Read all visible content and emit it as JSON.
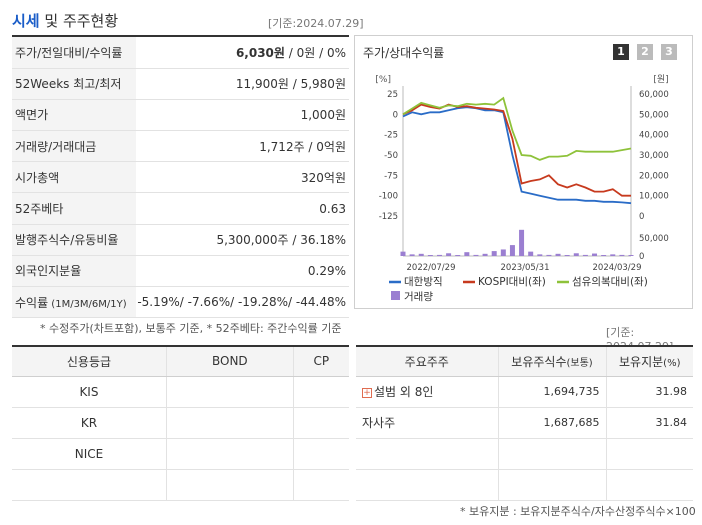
{
  "header": {
    "title_highlight": "시세",
    "title_rest": " 및 주주현황",
    "base_date": "[기준:2024.07.29]"
  },
  "quote_table": {
    "price_label": "주가/전일대비/수익률",
    "price_value": "6,030원",
    "price_rest": " / 0원 / 0%",
    "w52_label": "52Weeks 최고/최저",
    "w52_value": "11,900원 / 5,980원",
    "par_label": "액면가",
    "par_value": "1,000원",
    "volume_label": "거래량/거래대금",
    "volume_value": "1,712주 / 0억원",
    "mcap_label": "시가총액",
    "mcap_value": "320억원",
    "beta_label": "52주베타",
    "beta_value": "0.63",
    "shares_label": "발행주식수/유동비율",
    "shares_value": "5,300,000주 / 36.18%",
    "foreign_label": "외국인지분율",
    "foreign_value": "0.29%",
    "return_label": "수익률",
    "return_label_small": " (1M/3M/6M/1Y)",
    "return_value": "-5.19%/ -7.66%/ -19.28%/ -44.48%"
  },
  "note_left": "* 수정주가(차트포함), 보통주 기준, * 52주베타: 주간수익률 기준",
  "chart": {
    "title": "주가/상대수익률",
    "pages": [
      "1",
      "2",
      "3"
    ],
    "left_unit": "[%]",
    "right_unit": "[원]",
    "legend_stock": "대한방직",
    "legend_kospi": "KOSPI대비(좌)",
    "legend_sector": "섬유의복대비(좌)",
    "legend_volume": "거래량",
    "colors": {
      "stock": "#2a6cc7",
      "kospi": "#c73a1e",
      "sector": "#8ec23a",
      "volume": "#9b7fd1"
    }
  },
  "chart_data": {
    "type": "line",
    "x_ticks": [
      "2022/07/29",
      "2023/05/31",
      "2024/03/29"
    ],
    "y_left_ticks": [
      "25",
      "0",
      "-25",
      "-50",
      "-75",
      "-100",
      "-125"
    ],
    "y_right_ticks": [
      "60,000",
      "50,000",
      "40,000",
      "30,000",
      "20,000",
      "10,000",
      "0"
    ],
    "volume_ticks": [
      "50,000",
      "0"
    ],
    "ylim_left": [
      -125,
      25
    ],
    "ylim_right": [
      0,
      60000
    ],
    "series": [
      {
        "name": "대한방직",
        "axis": "right",
        "values": [
          49000,
          51000,
          50000,
          51000,
          51000,
          52000,
          53000,
          53500,
          53000,
          52000,
          52000,
          51000,
          30000,
          12000,
          11000,
          10000,
          9000,
          8000,
          8000,
          8000,
          7500,
          7500,
          7000,
          7000,
          6700,
          6300
        ]
      },
      {
        "name": "KOSPI대비(좌)",
        "axis": "left",
        "values": [
          0,
          5,
          12,
          9,
          7,
          12,
          9,
          10,
          8,
          7,
          6,
          4,
          -30,
          -85,
          -82,
          -80,
          -75,
          -86,
          -90,
          -86,
          -90,
          -95,
          -95,
          -92,
          -100,
          -100
        ]
      },
      {
        "name": "섬유의복대비(좌)",
        "axis": "left",
        "values": [
          0,
          7,
          14,
          11,
          8,
          11,
          10,
          13,
          12,
          13,
          12,
          20,
          -20,
          -50,
          -51,
          -56,
          -52,
          -52,
          -51,
          -45,
          -46,
          -46,
          -46,
          -46,
          -44,
          -42
        ]
      }
    ],
    "volume": {
      "name": "거래량",
      "values": [
        8000,
        3000,
        4000,
        1000,
        2000,
        5000,
        1000,
        7000,
        2000,
        4000,
        9000,
        12000,
        20000,
        48000,
        8000,
        3000,
        2000,
        4000,
        1500,
        5000,
        2000,
        4500,
        1500,
        3000,
        2000,
        1500
      ]
    }
  },
  "base_date_mid": "[기준: 2024.07.29]",
  "grade_table": {
    "headers": [
      "신용등급",
      "BOND",
      "CP"
    ],
    "rows": [
      [
        "KIS",
        "",
        ""
      ],
      [
        "KR",
        "",
        ""
      ],
      [
        "NICE",
        "",
        ""
      ],
      [
        "",
        "",
        ""
      ]
    ]
  },
  "holders_table": {
    "h_holder": "주요주주",
    "h_shares": "보유주식수",
    "h_shares_small": "(보통)",
    "h_ratio": "보유지분",
    "h_ratio_small": "(%)",
    "rows": [
      {
        "name": "설범 외 8인",
        "shares": "1,694,735",
        "ratio": "31.98"
      },
      {
        "name": "자사주",
        "shares": "1,687,685",
        "ratio": "31.84"
      },
      {
        "name": "",
        "shares": "",
        "ratio": ""
      },
      {
        "name": "",
        "shares": "",
        "ratio": ""
      }
    ]
  },
  "note_right": "* 보유지분 : 보유지분주식수/자수산정주식수×100"
}
